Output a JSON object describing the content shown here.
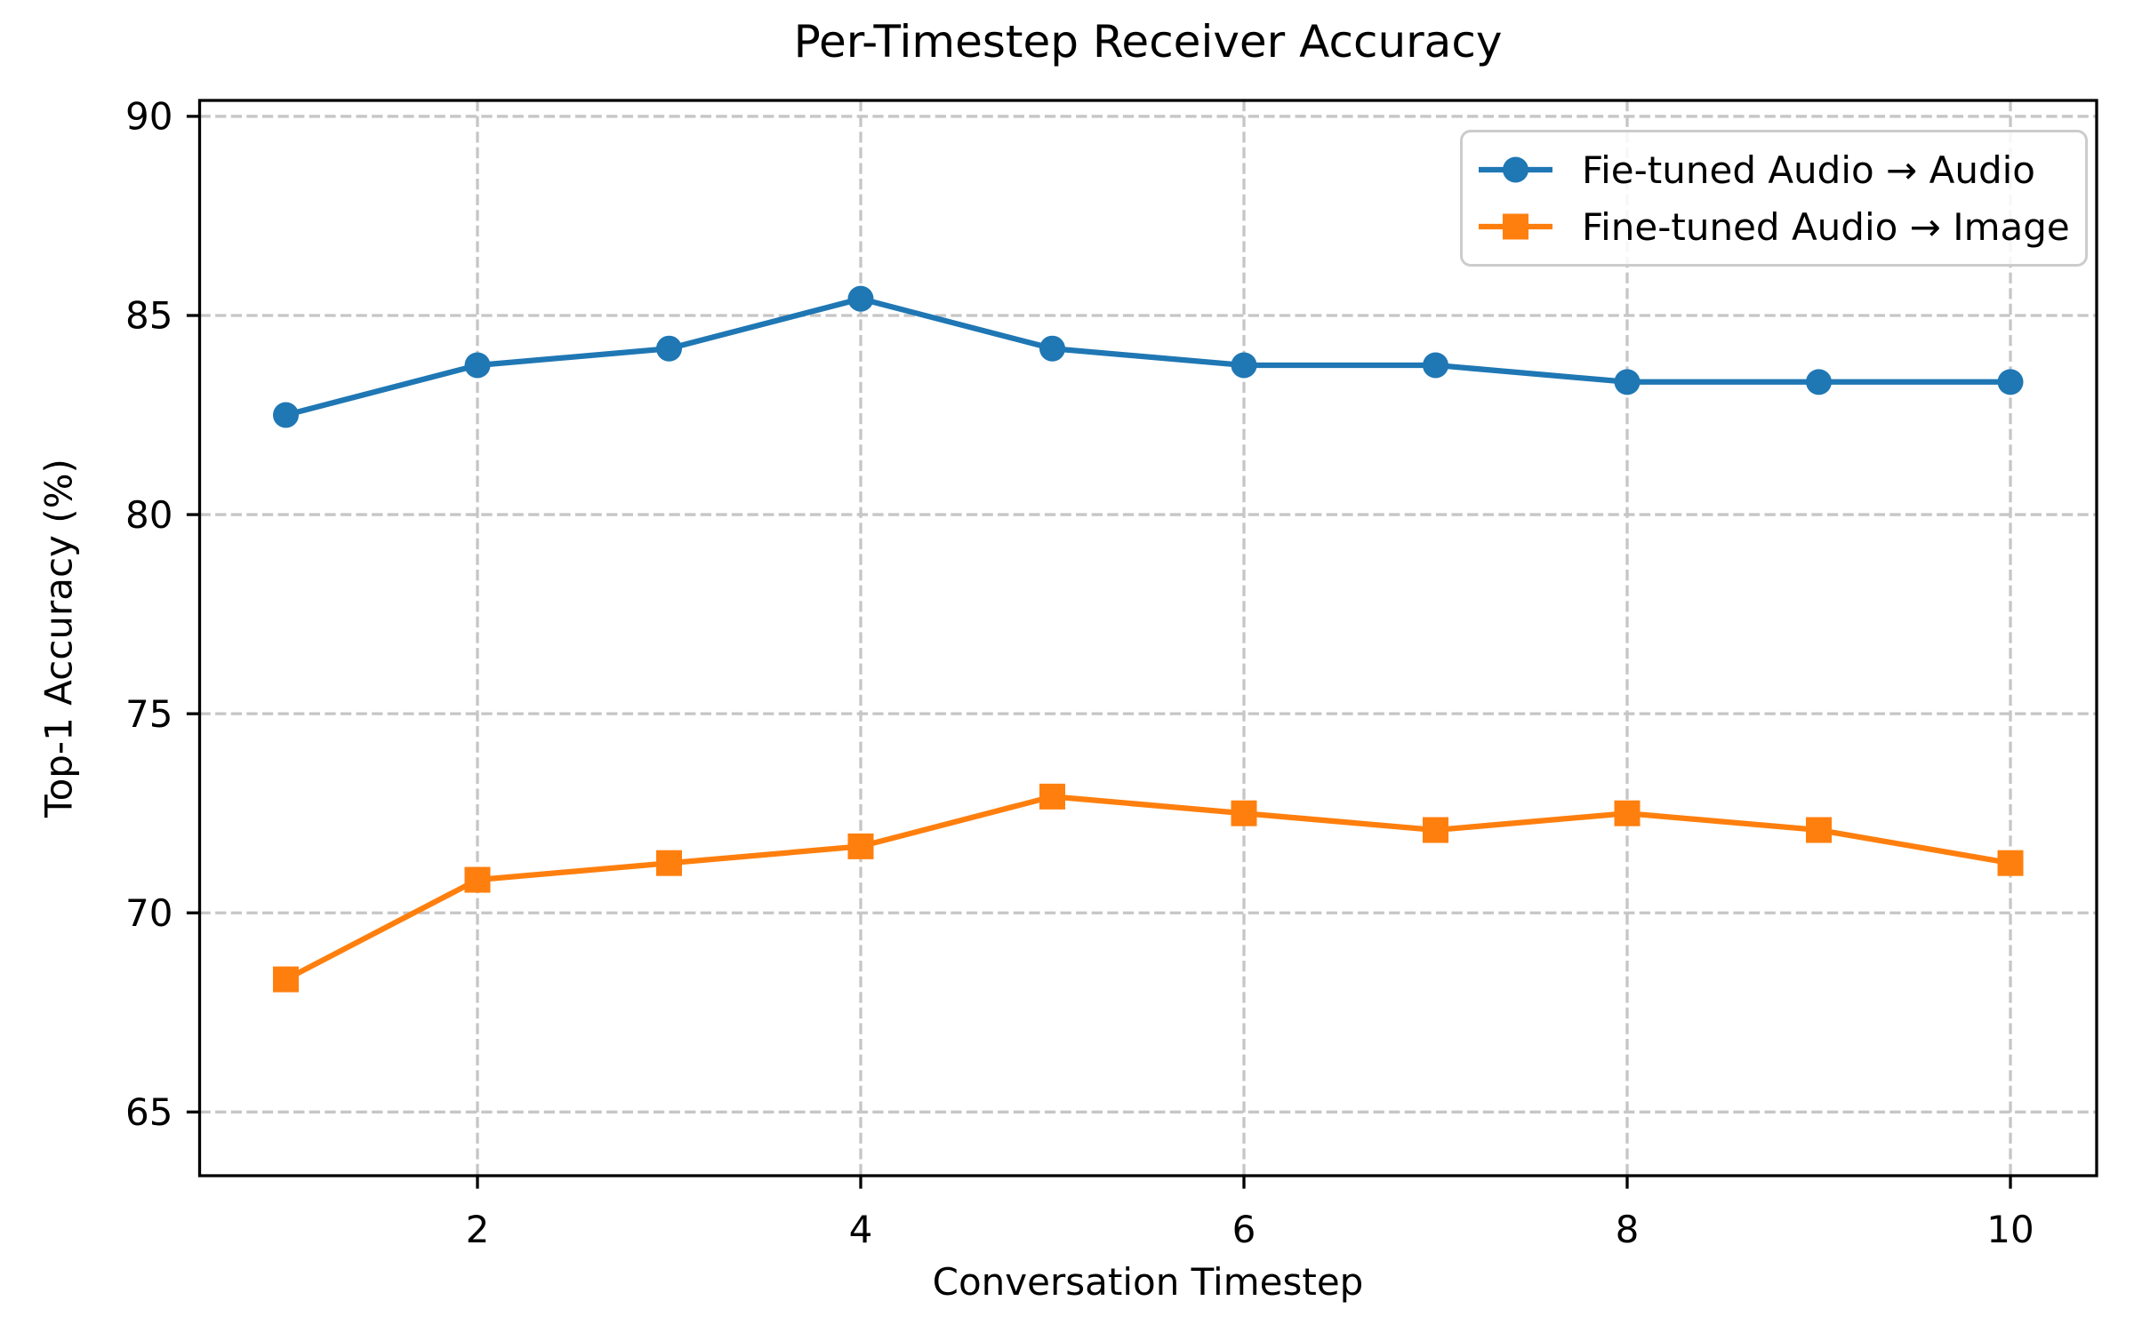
{
  "chart_data": {
    "type": "line",
    "title": "Per-Timestep Receiver Accuracy",
    "xlabel": "Conversation Timestep",
    "ylabel": "Top-1 Accuracy (%)",
    "x": [
      1,
      2,
      3,
      4,
      5,
      6,
      7,
      8,
      9,
      10
    ],
    "series": [
      {
        "name": "Fie-tuned Audio → Audio",
        "color": "#1f77b4",
        "marker": "circle",
        "values": [
          82.5,
          83.75,
          84.17,
          85.42,
          84.17,
          83.75,
          83.75,
          83.33,
          83.33,
          83.33
        ]
      },
      {
        "name": "Fine-tuned Audio → Image",
        "color": "#ff7f0e",
        "marker": "square",
        "values": [
          68.33,
          70.83,
          71.25,
          71.67,
          72.92,
          72.5,
          72.08,
          72.5,
          72.08,
          71.25
        ]
      }
    ],
    "xlim": [
      0.55,
      10.45
    ],
    "ylim": [
      63.4,
      90.4
    ],
    "xticks": [
      2,
      4,
      6,
      8,
      10
    ],
    "yticks": [
      65,
      70,
      75,
      80,
      85,
      90
    ],
    "x_tick_labels": [
      "2",
      "4",
      "6",
      "8",
      "10"
    ],
    "y_tick_labels": [
      "65",
      "70",
      "75",
      "80",
      "85",
      "90"
    ],
    "grid": true,
    "legend_position": "upper right",
    "colors": {
      "background": "#ffffff",
      "grid": "#c6c6c6",
      "spine": "#000000",
      "text": "#000000",
      "legend_border": "#cccccc"
    }
  }
}
